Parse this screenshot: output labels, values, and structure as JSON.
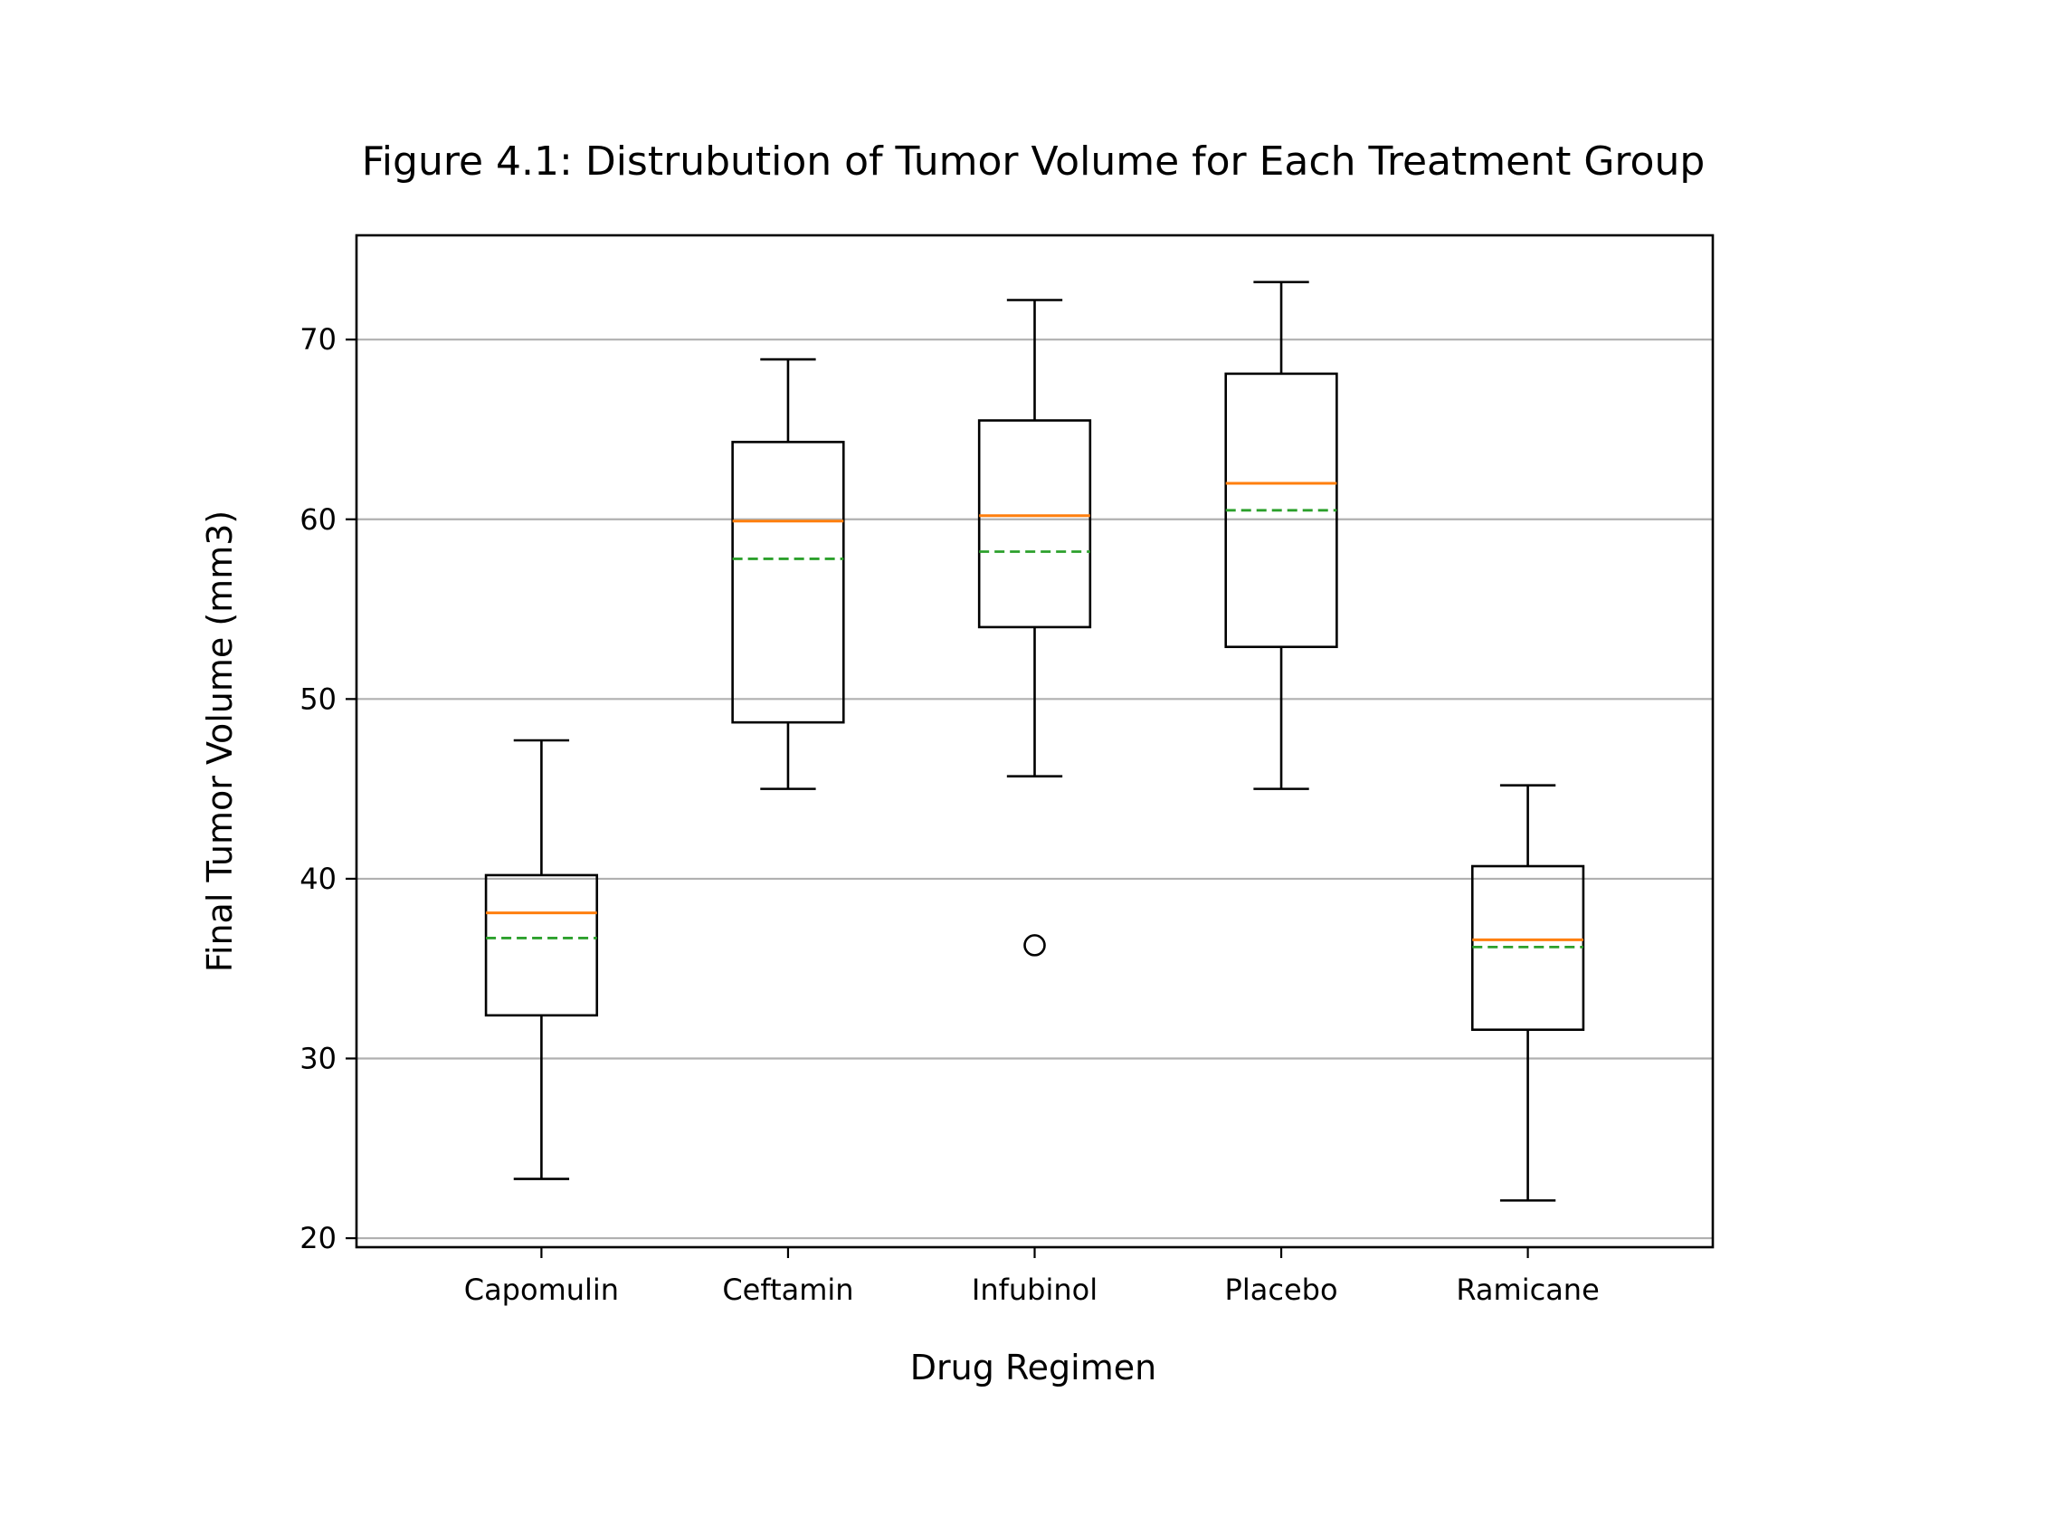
{
  "chart_data": {
    "type": "box",
    "title": "Figure 4.1: Distrubution of Tumor Volume for Each Treatment Group",
    "xlabel": "Drug Regimen",
    "ylabel": "Final Tumor Volume (mm3)",
    "ylim": [
      19.5,
      75.8
    ],
    "yticks": [
      20,
      30,
      40,
      50,
      60,
      70
    ],
    "grid": "horizontal",
    "colors": {
      "box": "#000000",
      "median": "#ff7f0e",
      "mean": "#2ca02c",
      "grid": "#b0b0b0"
    },
    "categories": [
      "Capomulin",
      "Ceftamin",
      "Infubinol",
      "Placebo",
      "Ramicane"
    ],
    "boxes": [
      {
        "name": "Capomulin",
        "whisker_low": 23.3,
        "q1": 32.4,
        "median": 38.1,
        "mean": 36.7,
        "q3": 40.2,
        "whisker_high": 47.7,
        "outliers": []
      },
      {
        "name": "Ceftamin",
        "whisker_low": 45.0,
        "q1": 48.7,
        "median": 59.9,
        "mean": 57.8,
        "q3": 64.3,
        "whisker_high": 68.9,
        "outliers": []
      },
      {
        "name": "Infubinol",
        "whisker_low": 45.7,
        "q1": 54.0,
        "median": 60.2,
        "mean": 58.2,
        "q3": 65.5,
        "whisker_high": 72.2,
        "outliers": [
          36.3
        ]
      },
      {
        "name": "Placebo",
        "whisker_low": 45.0,
        "q1": 52.9,
        "median": 62.0,
        "mean": 60.5,
        "q3": 68.1,
        "whisker_high": 73.2,
        "outliers": []
      },
      {
        "name": "Ramicane",
        "whisker_low": 22.1,
        "q1": 31.6,
        "median": 36.6,
        "mean": 36.2,
        "q3": 40.7,
        "whisker_high": 45.2,
        "outliers": []
      }
    ]
  }
}
